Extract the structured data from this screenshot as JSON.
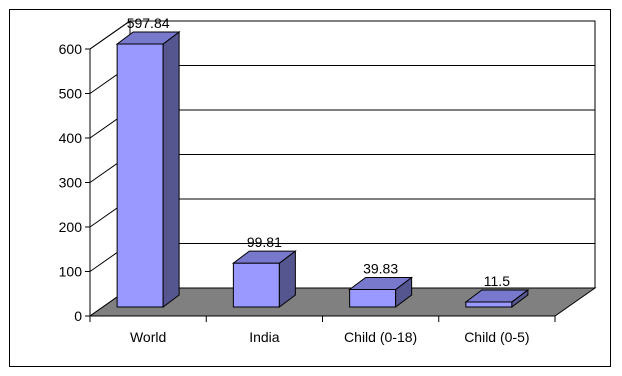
{
  "chart_data": {
    "type": "bar",
    "style": "3d-column",
    "title": "",
    "xlabel": "",
    "ylabel": "",
    "categories": [
      "World",
      "India",
      "Child (0-18)",
      "Child (0-5)"
    ],
    "values": [
      597.84,
      99.81,
      39.83,
      11.5
    ],
    "value_labels": [
      "597.84",
      "99.81",
      "39.83",
      "11.5"
    ],
    "ylim": [
      0,
      600
    ],
    "yticks": [
      0,
      100,
      200,
      300,
      400,
      500,
      600
    ],
    "grid": true,
    "legend": "none",
    "colors": {
      "bar_front": "#9999FF",
      "bar_side": "#55558F",
      "bar_top": "#7878CC",
      "floor": "#808080",
      "wall": "#ffffff",
      "gridline": "#000000"
    }
  }
}
